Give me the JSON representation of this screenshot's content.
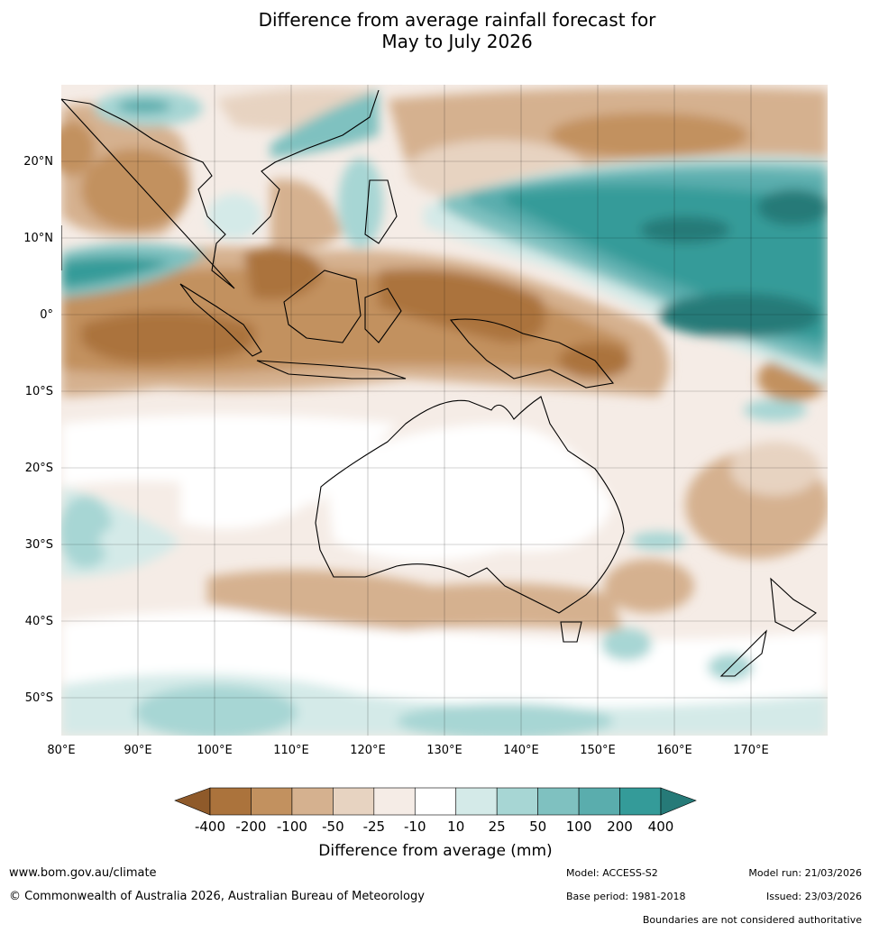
{
  "title_line1": "Difference from average rainfall forecast for",
  "title_line2": "May to July 2026",
  "lon_ticks": [
    "80°E",
    "90°E",
    "100°E",
    "110°E",
    "120°E",
    "130°E",
    "140°E",
    "150°E",
    "160°E",
    "170°E"
  ],
  "lat_ticks": [
    "20°N",
    "10°N",
    "0°",
    "10°S",
    "20°S",
    "30°S",
    "40°S",
    "50°S"
  ],
  "colorbar": {
    "title": "Difference from average (mm)",
    "labels": [
      "-400",
      "-200",
      "-100",
      "-50",
      "-25",
      "-10",
      "10",
      "25",
      "50",
      "100",
      "200",
      "400"
    ],
    "colors": [
      "#8f5a2a",
      "#ab733c",
      "#c2915f",
      "#d5b18f",
      "#e7d3c1",
      "#f5ece6",
      "#ffffff",
      "#d4eae8",
      "#a7d6d4",
      "#7fc1c0",
      "#5aadad",
      "#349b99",
      "#267a78"
    ]
  },
  "footer": {
    "website": "www.bom.gov.au/climate",
    "copyright": "© Commonwealth of Australia 2026, Australian Bureau of Meteorology",
    "model": "Model: ACCESS-S2",
    "base_period": "Base period: 1981-2018",
    "model_run": "Model run: 21/03/2026",
    "issued": "Issued: 23/03/2026",
    "disclaimer": "Boundaries are not considered authoritative"
  }
}
